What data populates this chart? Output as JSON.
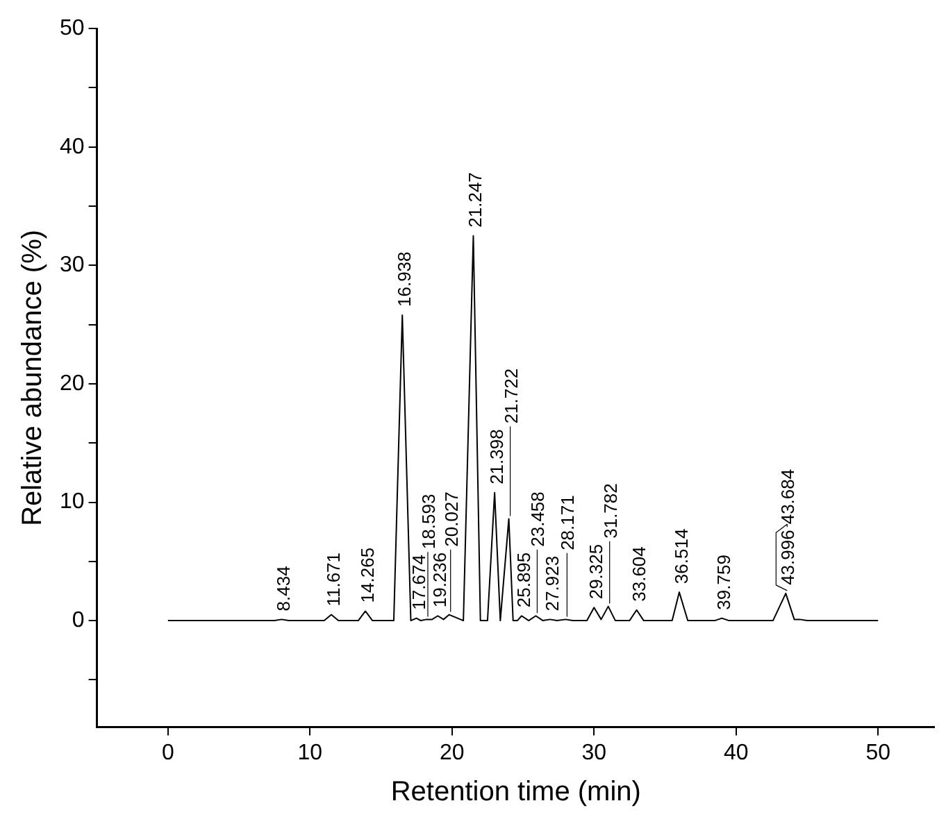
{
  "chart_data": {
    "type": "line",
    "xlabel": "Retention time (min)",
    "ylabel": "Relative abundance (%)",
    "xlim": [
      -5,
      54
    ],
    "ylim": [
      -9,
      50
    ],
    "xticks": [
      0,
      10,
      20,
      30,
      40,
      50
    ],
    "yticks": [
      {
        "value": -5,
        "label": null
      },
      0,
      {
        "value": 5,
        "label": null
      },
      10,
      {
        "value": 15,
        "label": null
      },
      20,
      {
        "value": 25,
        "label": null
      },
      30,
      {
        "value": 35,
        "label": null
      },
      40,
      {
        "value": 45,
        "label": null
      },
      50
    ],
    "grid": false,
    "legend": false,
    "marker": "none",
    "line_style": "solid",
    "series": [
      {
        "color": "#000000",
        "x": [
          0,
          7.5,
          8.0,
          8.5,
          11.0,
          11.5,
          12.0,
          13.4,
          13.9,
          14.4,
          15.9,
          16.5,
          17.1,
          17.5,
          17.8,
          18.2,
          18.6,
          19.0,
          19.4,
          19.8,
          20.8,
          21.5,
          22.0,
          22.5,
          23.0,
          23.4,
          24.0,
          24.3,
          24.6,
          24.9,
          25.4,
          25.9,
          26.4,
          26.9,
          27.4,
          28.0,
          28.5,
          29.0,
          29.5,
          30.0,
          30.5,
          31.0,
          31.5,
          32.5,
          33.0,
          33.5,
          35.5,
          36.0,
          36.6,
          38.5,
          39.0,
          39.5,
          42.6,
          43.5,
          44.1,
          44.5,
          45,
          50
        ],
        "values": [
          0,
          0,
          0.1,
          0,
          0,
          0.5,
          0,
          0,
          0.8,
          0,
          0,
          25.8,
          0,
          0.2,
          0,
          0.1,
          0.1,
          0.4,
          0.1,
          0.5,
          0,
          32.5,
          0,
          0,
          10.8,
          0,
          8.6,
          0,
          0,
          0.4,
          0,
          0.4,
          0,
          0.1,
          0,
          0.1,
          0,
          0,
          0,
          1.1,
          0.1,
          1.2,
          0,
          0,
          0.9,
          0,
          0,
          2.4,
          0,
          0,
          0.2,
          0,
          0,
          2.3,
          0.1,
          0.1,
          0,
          0
        ]
      }
    ],
    "annotations": [
      {
        "text": "8.434",
        "x": 8.0,
        "y": 0.1
      },
      {
        "text": "11.671",
        "x": 11.5,
        "y": 0.5
      },
      {
        "text": "14.265",
        "x": 13.9,
        "y": 0.8
      },
      {
        "text": "16.938",
        "x": 16.5,
        "y": 25.8
      },
      {
        "text": "17.674",
        "x": 17.5,
        "y": 0.2
      },
      {
        "text": "18.593",
        "x": 18.2,
        "y": 0.1
      },
      {
        "text": "19.236",
        "x": 19.0,
        "y": 0.4
      },
      {
        "text": "20.027",
        "x": 19.8,
        "y": 0.5
      },
      {
        "text": "21.247",
        "x": 21.5,
        "y": 32.5
      },
      {
        "text": "21.398",
        "x": 23.0,
        "y": 10.8
      },
      {
        "text": "21.722",
        "x": 24.0,
        "y": 8.6
      },
      {
        "text": "25.895",
        "x": 24.9,
        "y": 0.4
      },
      {
        "text": "23.458",
        "x": 25.9,
        "y": 0.4
      },
      {
        "text": "27.923",
        "x": 26.9,
        "y": 0.1
      },
      {
        "text": "28.171",
        "x": 28.0,
        "y": 0.1
      },
      {
        "text": "29.325",
        "x": 30.0,
        "y": 1.1
      },
      {
        "text": "31.782",
        "x": 31.0,
        "y": 1.2
      },
      {
        "text": "33.604",
        "x": 33.0,
        "y": 0.9
      },
      {
        "text": "36.514",
        "x": 36.0,
        "y": 2.4
      },
      {
        "text": "39.759",
        "x": 39.0,
        "y": 0.2
      },
      {
        "text": "43.996",
        "x": 43.5,
        "y": 2.3
      },
      {
        "text": "43.684",
        "x": 43.5,
        "y": 2.3
      }
    ]
  }
}
